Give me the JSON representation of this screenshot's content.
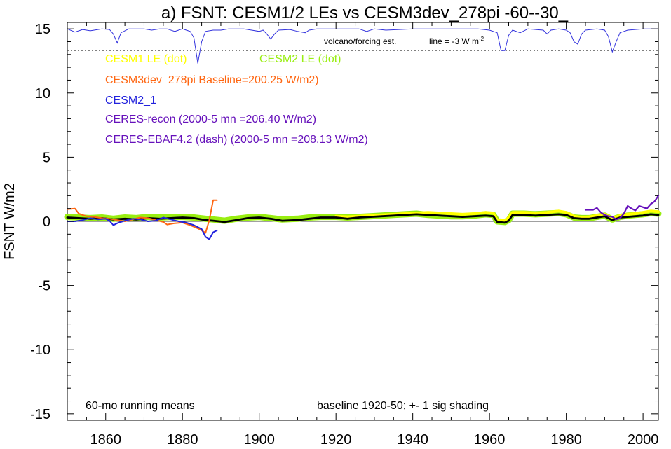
{
  "chart_data": {
    "type": "line",
    "title": "a) FSNT: CESM1/2 LEs vs CESM3dev_278pi -60--30_",
    "ylabel": "FSNT W/m2",
    "xlim": [
      1850,
      2004
    ],
    "ylim": [
      -15.5,
      15.5
    ],
    "xticks": [
      1860,
      1880,
      1900,
      1920,
      1940,
      1960,
      1980,
      2000
    ],
    "yticks": [
      -15,
      -10,
      -5,
      0,
      5,
      10,
      15
    ],
    "grid": false,
    "legend": {
      "placement": "top-left",
      "entries": [
        {
          "label": "CESM1 LE (dot)",
          "color": "#ffff00"
        },
        {
          "label": "CESM2 LE (dot)",
          "color": "#99ee11"
        },
        {
          "label": "CESM3dev_278pi Baseline=200.25 W/m2)",
          "color": "#ff6611"
        },
        {
          "label": "CESM2_1",
          "color": "#2222dd"
        },
        {
          "label": "CERES-recon (2000-5 mn =206.40 W/m2)",
          "color": "#6611bb"
        },
        {
          "label": "CERES-EBAF4.2 (dash) (2000-5 mn =208.13 W/m2)",
          "color": "#6611bb"
        }
      ]
    },
    "annotations": {
      "volcano": "volcano/forcing est.",
      "line_note": "line = -3 W m",
      "line_note_sup": "-2",
      "running_means": "60-mo running means",
      "baseline": "baseline 1920-50; +- 1 sig shading"
    },
    "reference_line_y": 13.3,
    "volcano_series": {
      "name": "volcano/forcing est.",
      "color": "#3333dd",
      "baseline_y": 15.0,
      "points": [
        [
          1850,
          15.0
        ],
        [
          1852,
          14.75
        ],
        [
          1854,
          14.95
        ],
        [
          1856,
          14.85
        ],
        [
          1859,
          15.0
        ],
        [
          1861,
          14.95
        ],
        [
          1862,
          14.6
        ],
        [
          1863,
          13.9
        ],
        [
          1864,
          14.7
        ],
        [
          1866,
          15.0
        ],
        [
          1870,
          15.0
        ],
        [
          1872,
          14.9
        ],
        [
          1874,
          15.0
        ],
        [
          1876,
          15.0
        ],
        [
          1878,
          14.8
        ],
        [
          1880,
          15.0
        ],
        [
          1881,
          14.9
        ],
        [
          1882,
          14.8
        ],
        [
          1883,
          14.3
        ],
        [
          1883.5,
          13.3
        ],
        [
          1884,
          12.3
        ],
        [
          1885,
          14.0
        ],
        [
          1886,
          14.8
        ],
        [
          1888,
          14.9
        ],
        [
          1890,
          14.9
        ],
        [
          1892,
          15.0
        ],
        [
          1896,
          15.0
        ],
        [
          1898,
          14.9
        ],
        [
          1900,
          14.8
        ],
        [
          1901,
          14.9
        ],
        [
          1902,
          14.6
        ],
        [
          1903,
          14.2
        ],
        [
          1904,
          14.6
        ],
        [
          1905,
          14.9
        ],
        [
          1908,
          14.95
        ],
        [
          1910,
          14.8
        ],
        [
          1912,
          14.7
        ],
        [
          1913,
          14.9
        ],
        [
          1915,
          15.0
        ],
        [
          1920,
          15.0
        ],
        [
          1926,
          15.0
        ],
        [
          1928,
          14.8
        ],
        [
          1930,
          15.0
        ],
        [
          1933,
          14.9
        ],
        [
          1940,
          15.0
        ],
        [
          1950,
          15.0
        ],
        [
          1957,
          15.0
        ],
        [
          1960,
          14.9
        ],
        [
          1962,
          14.7
        ],
        [
          1963,
          13.3
        ],
        [
          1964,
          13.3
        ],
        [
          1965,
          14.5
        ],
        [
          1966,
          14.9
        ],
        [
          1968,
          14.7
        ],
        [
          1970,
          15.0
        ],
        [
          1974,
          14.9
        ],
        [
          1975,
          14.6
        ],
        [
          1976,
          14.9
        ],
        [
          1978,
          15.0
        ],
        [
          1980,
          14.9
        ],
        [
          1981,
          14.7
        ],
        [
          1982,
          14.0
        ],
        [
          1983,
          13.8
        ],
        [
          1984,
          14.6
        ],
        [
          1985,
          14.9
        ],
        [
          1988,
          15.0
        ],
        [
          1990,
          14.9
        ],
        [
          1991,
          14.4
        ],
        [
          1992,
          13.2
        ],
        [
          1993,
          14.0
        ],
        [
          1994,
          14.7
        ],
        [
          1996,
          14.9
        ],
        [
          2000,
          15.0
        ],
        [
          2004,
          15.0
        ]
      ]
    },
    "series": [
      {
        "name": "CESM2 LE (dot)",
        "color": "#99ee11",
        "width": 9,
        "points": [
          [
            1850,
            0.35
          ],
          [
            1853,
            0.3
          ],
          [
            1856,
            0.25
          ],
          [
            1859,
            0.3
          ],
          [
            1862,
            0.2
          ],
          [
            1865,
            0.3
          ],
          [
            1868,
            0.25
          ],
          [
            1871,
            0.35
          ],
          [
            1874,
            0.3
          ],
          [
            1877,
            0.35
          ],
          [
            1880,
            0.35
          ],
          [
            1883,
            0.3
          ],
          [
            1886,
            0.2
          ],
          [
            1888,
            0.15
          ],
          [
            1891,
            0.05
          ],
          [
            1894,
            0.2
          ],
          [
            1897,
            0.3
          ],
          [
            1900,
            0.35
          ],
          [
            1903,
            0.25
          ],
          [
            1906,
            0.15
          ],
          [
            1910,
            0.2
          ],
          [
            1913,
            0.3
          ],
          [
            1916,
            0.35
          ],
          [
            1920,
            0.35
          ],
          [
            1923,
            0.3
          ],
          [
            1926,
            0.35
          ],
          [
            1929,
            0.4
          ],
          [
            1932,
            0.45
          ],
          [
            1935,
            0.5
          ],
          [
            1938,
            0.55
          ],
          [
            1941,
            0.6
          ],
          [
            1944,
            0.5
          ],
          [
            1947,
            0.45
          ],
          [
            1950,
            0.4
          ],
          [
            1953,
            0.4
          ],
          [
            1956,
            0.45
          ],
          [
            1959,
            0.55
          ],
          [
            1961,
            0.5
          ],
          [
            1962,
            0.0
          ],
          [
            1964,
            -0.05
          ],
          [
            1965,
            0.1
          ],
          [
            1966,
            0.6
          ],
          [
            1969,
            0.6
          ],
          [
            1972,
            0.55
          ],
          [
            1975,
            0.6
          ],
          [
            1978,
            0.65
          ],
          [
            1980,
            0.55
          ],
          [
            1982,
            0.3
          ],
          [
            1984,
            0.25
          ],
          [
            1986,
            0.25
          ],
          [
            1988,
            0.35
          ],
          [
            1990,
            0.45
          ],
          [
            1992,
            0.15
          ],
          [
            1994,
            0.35
          ],
          [
            1996,
            0.45
          ],
          [
            1998,
            0.5
          ],
          [
            2000,
            0.55
          ],
          [
            2002,
            0.65
          ],
          [
            2004,
            0.6
          ]
        ]
      },
      {
        "name": "CESM1 LE (dot)",
        "color": "#ffff00",
        "width": 4,
        "points": [
          [
            1920,
            0.4
          ],
          [
            1923,
            0.35
          ],
          [
            1926,
            0.4
          ],
          [
            1929,
            0.45
          ],
          [
            1932,
            0.5
          ],
          [
            1935,
            0.55
          ],
          [
            1938,
            0.6
          ],
          [
            1941,
            0.65
          ],
          [
            1944,
            0.7
          ],
          [
            1947,
            0.65
          ],
          [
            1950,
            0.6
          ],
          [
            1953,
            0.55
          ],
          [
            1956,
            0.6
          ],
          [
            1959,
            0.7
          ],
          [
            1961,
            0.65
          ],
          [
            1962,
            0.1
          ],
          [
            1964,
            0.05
          ],
          [
            1965,
            0.3
          ],
          [
            1966,
            0.7
          ],
          [
            1969,
            0.7
          ],
          [
            1972,
            0.65
          ],
          [
            1975,
            0.7
          ],
          [
            1978,
            0.8
          ],
          [
            1980,
            0.7
          ],
          [
            1982,
            0.4
          ],
          [
            1984,
            0.3
          ],
          [
            1986,
            0.35
          ],
          [
            1988,
            0.45
          ],
          [
            1990,
            0.55
          ],
          [
            1992,
            0.25
          ],
          [
            1994,
            0.45
          ],
          [
            1996,
            0.55
          ],
          [
            1998,
            0.6
          ],
          [
            2000,
            0.7
          ],
          [
            2002,
            0.8
          ],
          [
            2004,
            0.75
          ]
        ]
      },
      {
        "name": "CESM2 ensemble mean",
        "color": "#000000",
        "width": 2.8,
        "points": [
          [
            1850,
            0.3
          ],
          [
            1853,
            0.25
          ],
          [
            1856,
            0.2
          ],
          [
            1859,
            0.25
          ],
          [
            1862,
            0.15
          ],
          [
            1865,
            0.2
          ],
          [
            1868,
            0.15
          ],
          [
            1871,
            0.25
          ],
          [
            1874,
            0.2
          ],
          [
            1877,
            0.25
          ],
          [
            1880,
            0.3
          ],
          [
            1883,
            0.25
          ],
          [
            1886,
            0.1
          ],
          [
            1888,
            0.05
          ],
          [
            1891,
            -0.05
          ],
          [
            1894,
            0.1
          ],
          [
            1897,
            0.25
          ],
          [
            1900,
            0.3
          ],
          [
            1903,
            0.2
          ],
          [
            1906,
            0.05
          ],
          [
            1910,
            0.1
          ],
          [
            1913,
            0.2
          ],
          [
            1916,
            0.3
          ],
          [
            1920,
            0.3
          ],
          [
            1923,
            0.2
          ],
          [
            1926,
            0.3
          ],
          [
            1929,
            0.35
          ],
          [
            1932,
            0.4
          ],
          [
            1935,
            0.45
          ],
          [
            1938,
            0.5
          ],
          [
            1941,
            0.55
          ],
          [
            1944,
            0.5
          ],
          [
            1947,
            0.45
          ],
          [
            1950,
            0.4
          ],
          [
            1953,
            0.35
          ],
          [
            1956,
            0.4
          ],
          [
            1959,
            0.45
          ],
          [
            1961,
            0.4
          ],
          [
            1962,
            -0.05
          ],
          [
            1964,
            -0.1
          ],
          [
            1965,
            0.05
          ],
          [
            1966,
            0.5
          ],
          [
            1969,
            0.5
          ],
          [
            1972,
            0.45
          ],
          [
            1975,
            0.5
          ],
          [
            1978,
            0.55
          ],
          [
            1980,
            0.5
          ],
          [
            1982,
            0.25
          ],
          [
            1984,
            0.2
          ],
          [
            1986,
            0.2
          ],
          [
            1988,
            0.3
          ],
          [
            1990,
            0.4
          ],
          [
            1992,
            0.1
          ],
          [
            1994,
            0.3
          ],
          [
            1996,
            0.35
          ],
          [
            1998,
            0.4
          ],
          [
            2000,
            0.45
          ],
          [
            2002,
            0.55
          ],
          [
            2004,
            0.5
          ]
        ]
      },
      {
        "name": "CESM3dev_278pi",
        "color": "#ff6611",
        "width": 2,
        "points": [
          [
            1850,
            0.95
          ],
          [
            1852,
            1.0
          ],
          [
            1853,
            0.6
          ],
          [
            1855,
            0.4
          ],
          [
            1857,
            0.35
          ],
          [
            1859,
            0.25
          ],
          [
            1861,
            0.2
          ],
          [
            1863,
            0.1
          ],
          [
            1865,
            0.0
          ],
          [
            1867,
            0.15
          ],
          [
            1869,
            0.3
          ],
          [
            1871,
            0.25
          ],
          [
            1873,
            0.1
          ],
          [
            1875,
            -0.05
          ],
          [
            1876,
            -0.25
          ],
          [
            1878,
            -0.15
          ],
          [
            1880,
            -0.1
          ],
          [
            1882,
            -0.3
          ],
          [
            1884,
            -0.55
          ],
          [
            1885,
            -0.7
          ],
          [
            1886,
            -0.9
          ],
          [
            1887,
            0.1
          ],
          [
            1888,
            1.65
          ],
          [
            1889,
            1.65
          ]
        ]
      },
      {
        "name": "CESM2_1",
        "color": "#2222dd",
        "width": 2,
        "points": [
          [
            1850,
            0.0
          ],
          [
            1852,
            0.0
          ],
          [
            1854,
            0.1
          ],
          [
            1856,
            0.25
          ],
          [
            1858,
            0.15
          ],
          [
            1860,
            0.2
          ],
          [
            1861,
            0.05
          ],
          [
            1862,
            -0.3
          ],
          [
            1863,
            -0.15
          ],
          [
            1865,
            0.05
          ],
          [
            1867,
            0.2
          ],
          [
            1869,
            0.15
          ],
          [
            1871,
            0.0
          ],
          [
            1873,
            0.05
          ],
          [
            1875,
            0.3
          ],
          [
            1877,
            0.15
          ],
          [
            1879,
            0.0
          ],
          [
            1881,
            -0.1
          ],
          [
            1883,
            -0.3
          ],
          [
            1885,
            -0.6
          ],
          [
            1886,
            -1.2
          ],
          [
            1887,
            -1.4
          ],
          [
            1888,
            -0.85
          ],
          [
            1889,
            -0.7
          ]
        ]
      },
      {
        "name": "CERES-recon",
        "color": "#6611bb",
        "width": 2.2,
        "points": [
          [
            1985,
            0.9
          ],
          [
            1987,
            0.9
          ],
          [
            1988,
            1.05
          ],
          [
            1989,
            0.7
          ],
          [
            1990,
            0.5
          ],
          [
            1991,
            0.4
          ],
          [
            1992,
            0.35
          ],
          [
            1993,
            0.15
          ],
          [
            1994,
            0.25
          ],
          [
            1995,
            0.6
          ],
          [
            1996,
            1.2
          ],
          [
            1997,
            1.0
          ],
          [
            1998,
            0.85
          ],
          [
            1999,
            1.2
          ],
          [
            2000,
            1.1
          ],
          [
            2001,
            1.0
          ],
          [
            2002,
            1.35
          ],
          [
            2003,
            1.55
          ],
          [
            2004,
            2.0
          ]
        ]
      }
    ]
  }
}
